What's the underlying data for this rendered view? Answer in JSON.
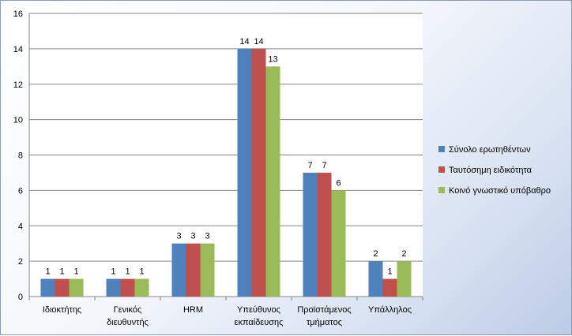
{
  "chart_data": {
    "type": "bar",
    "categories": [
      [
        "Ιδιοκτήτης"
      ],
      [
        "Γενικός",
        "διευθυντής"
      ],
      [
        "HRM"
      ],
      [
        "Υπεύθυνος",
        "εκπαίδευσης"
      ],
      [
        "Προϊστάμενος",
        "τμήματος"
      ],
      [
        "Υπάλληλος"
      ]
    ],
    "series": [
      {
        "name": "Σύνολο ερωτηθέντων",
        "color": "#4f81bd",
        "values": [
          1,
          1,
          3,
          14,
          7,
          2
        ]
      },
      {
        "name": "Ταυτόσημη ειδικότητα",
        "color": "#c0504d",
        "values": [
          1,
          1,
          3,
          14,
          7,
          1
        ]
      },
      {
        "name": "Κοινό γνωστικό υπόβαθρο",
        "color": "#9bbb59",
        "values": [
          1,
          1,
          3,
          13,
          6,
          2
        ]
      }
    ],
    "yticks": [
      "0",
      "2",
      "4",
      "6",
      "8",
      "10",
      "12",
      "14",
      "16"
    ],
    "ylim": [
      0,
      16
    ],
    "grid": true,
    "data_labels": true,
    "legend_position": "right"
  }
}
